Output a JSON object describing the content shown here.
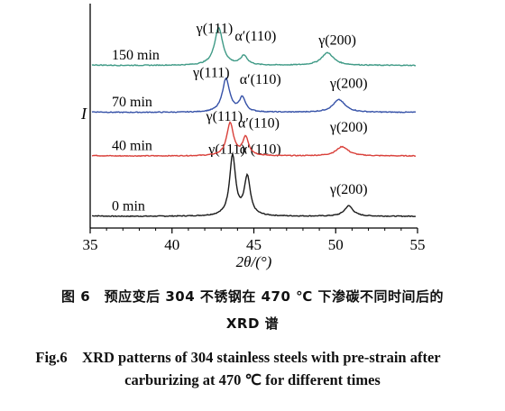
{
  "chart_data": {
    "type": "line",
    "xlabel": "2θ/(°)",
    "ylabel": "I",
    "xlim": [
      35,
      55
    ],
    "xticks": [
      35,
      40,
      45,
      50,
      55
    ],
    "series": [
      {
        "name": "0 min",
        "color": "#1a1a1a",
        "baseline": 0,
        "peaks": [
          {
            "x": 43.7,
            "h": 3.6,
            "w": 0.22
          },
          {
            "x": 44.6,
            "h": 2.3,
            "w": 0.22
          },
          {
            "x": 50.8,
            "h": 0.62,
            "w": 0.32
          }
        ],
        "labels": [
          {
            "text": "γ(111)",
            "x": 43.35
          },
          {
            "text": "α′(110)",
            "x": 45.4
          },
          {
            "text": "γ(200)",
            "x": 50.8
          }
        ]
      },
      {
        "name": "40 min",
        "color": "#d9403a",
        "baseline": 3.6,
        "peaks": [
          {
            "x": 43.55,
            "h": 1.95,
            "w": 0.25
          },
          {
            "x": 44.5,
            "h": 1.1,
            "w": 0.22
          },
          {
            "x": 50.4,
            "h": 0.55,
            "w": 0.45
          }
        ],
        "labels": [
          {
            "text": "γ(111)",
            "x": 43.2
          },
          {
            "text": "α′(110)",
            "x": 45.3
          },
          {
            "text": "γ(200)",
            "x": 50.8
          }
        ]
      },
      {
        "name": "70 min",
        "color": "#3652a8",
        "baseline": 6.2,
        "peaks": [
          {
            "x": 43.3,
            "h": 2.0,
            "w": 0.27
          },
          {
            "x": 44.3,
            "h": 0.85,
            "w": 0.22
          },
          {
            "x": 50.2,
            "h": 0.75,
            "w": 0.45
          }
        ],
        "labels": [
          {
            "text": "γ(111)",
            "x": 42.4
          },
          {
            "text": "α′(110)",
            "x": 45.4
          },
          {
            "text": "γ(200)",
            "x": 50.8
          }
        ]
      },
      {
        "name": "150 min",
        "color": "#3f9a86",
        "baseline": 9.0,
        "peaks": [
          {
            "x": 42.85,
            "h": 2.25,
            "w": 0.3
          },
          {
            "x": 44.4,
            "h": 0.55,
            "w": 0.25
          },
          {
            "x": 49.5,
            "h": 0.75,
            "w": 0.45
          }
        ],
        "labels": [
          {
            "text": "γ(111)",
            "x": 42.6
          },
          {
            "text": "α′(110)",
            "x": 45.1
          },
          {
            "text": "γ(200)",
            "x": 50.1
          }
        ]
      }
    ]
  },
  "caption": {
    "cn_line1": "图 6　预应变后 304 不锈钢在 470 ℃ 下渗碳不同时间后的",
    "cn_line2": "XRD 谱",
    "en_line1": "Fig.6　XRD patterns of 304 stainless steels with pre-strain after",
    "en_line2": "carburizing at 470 ℃  for different times"
  }
}
